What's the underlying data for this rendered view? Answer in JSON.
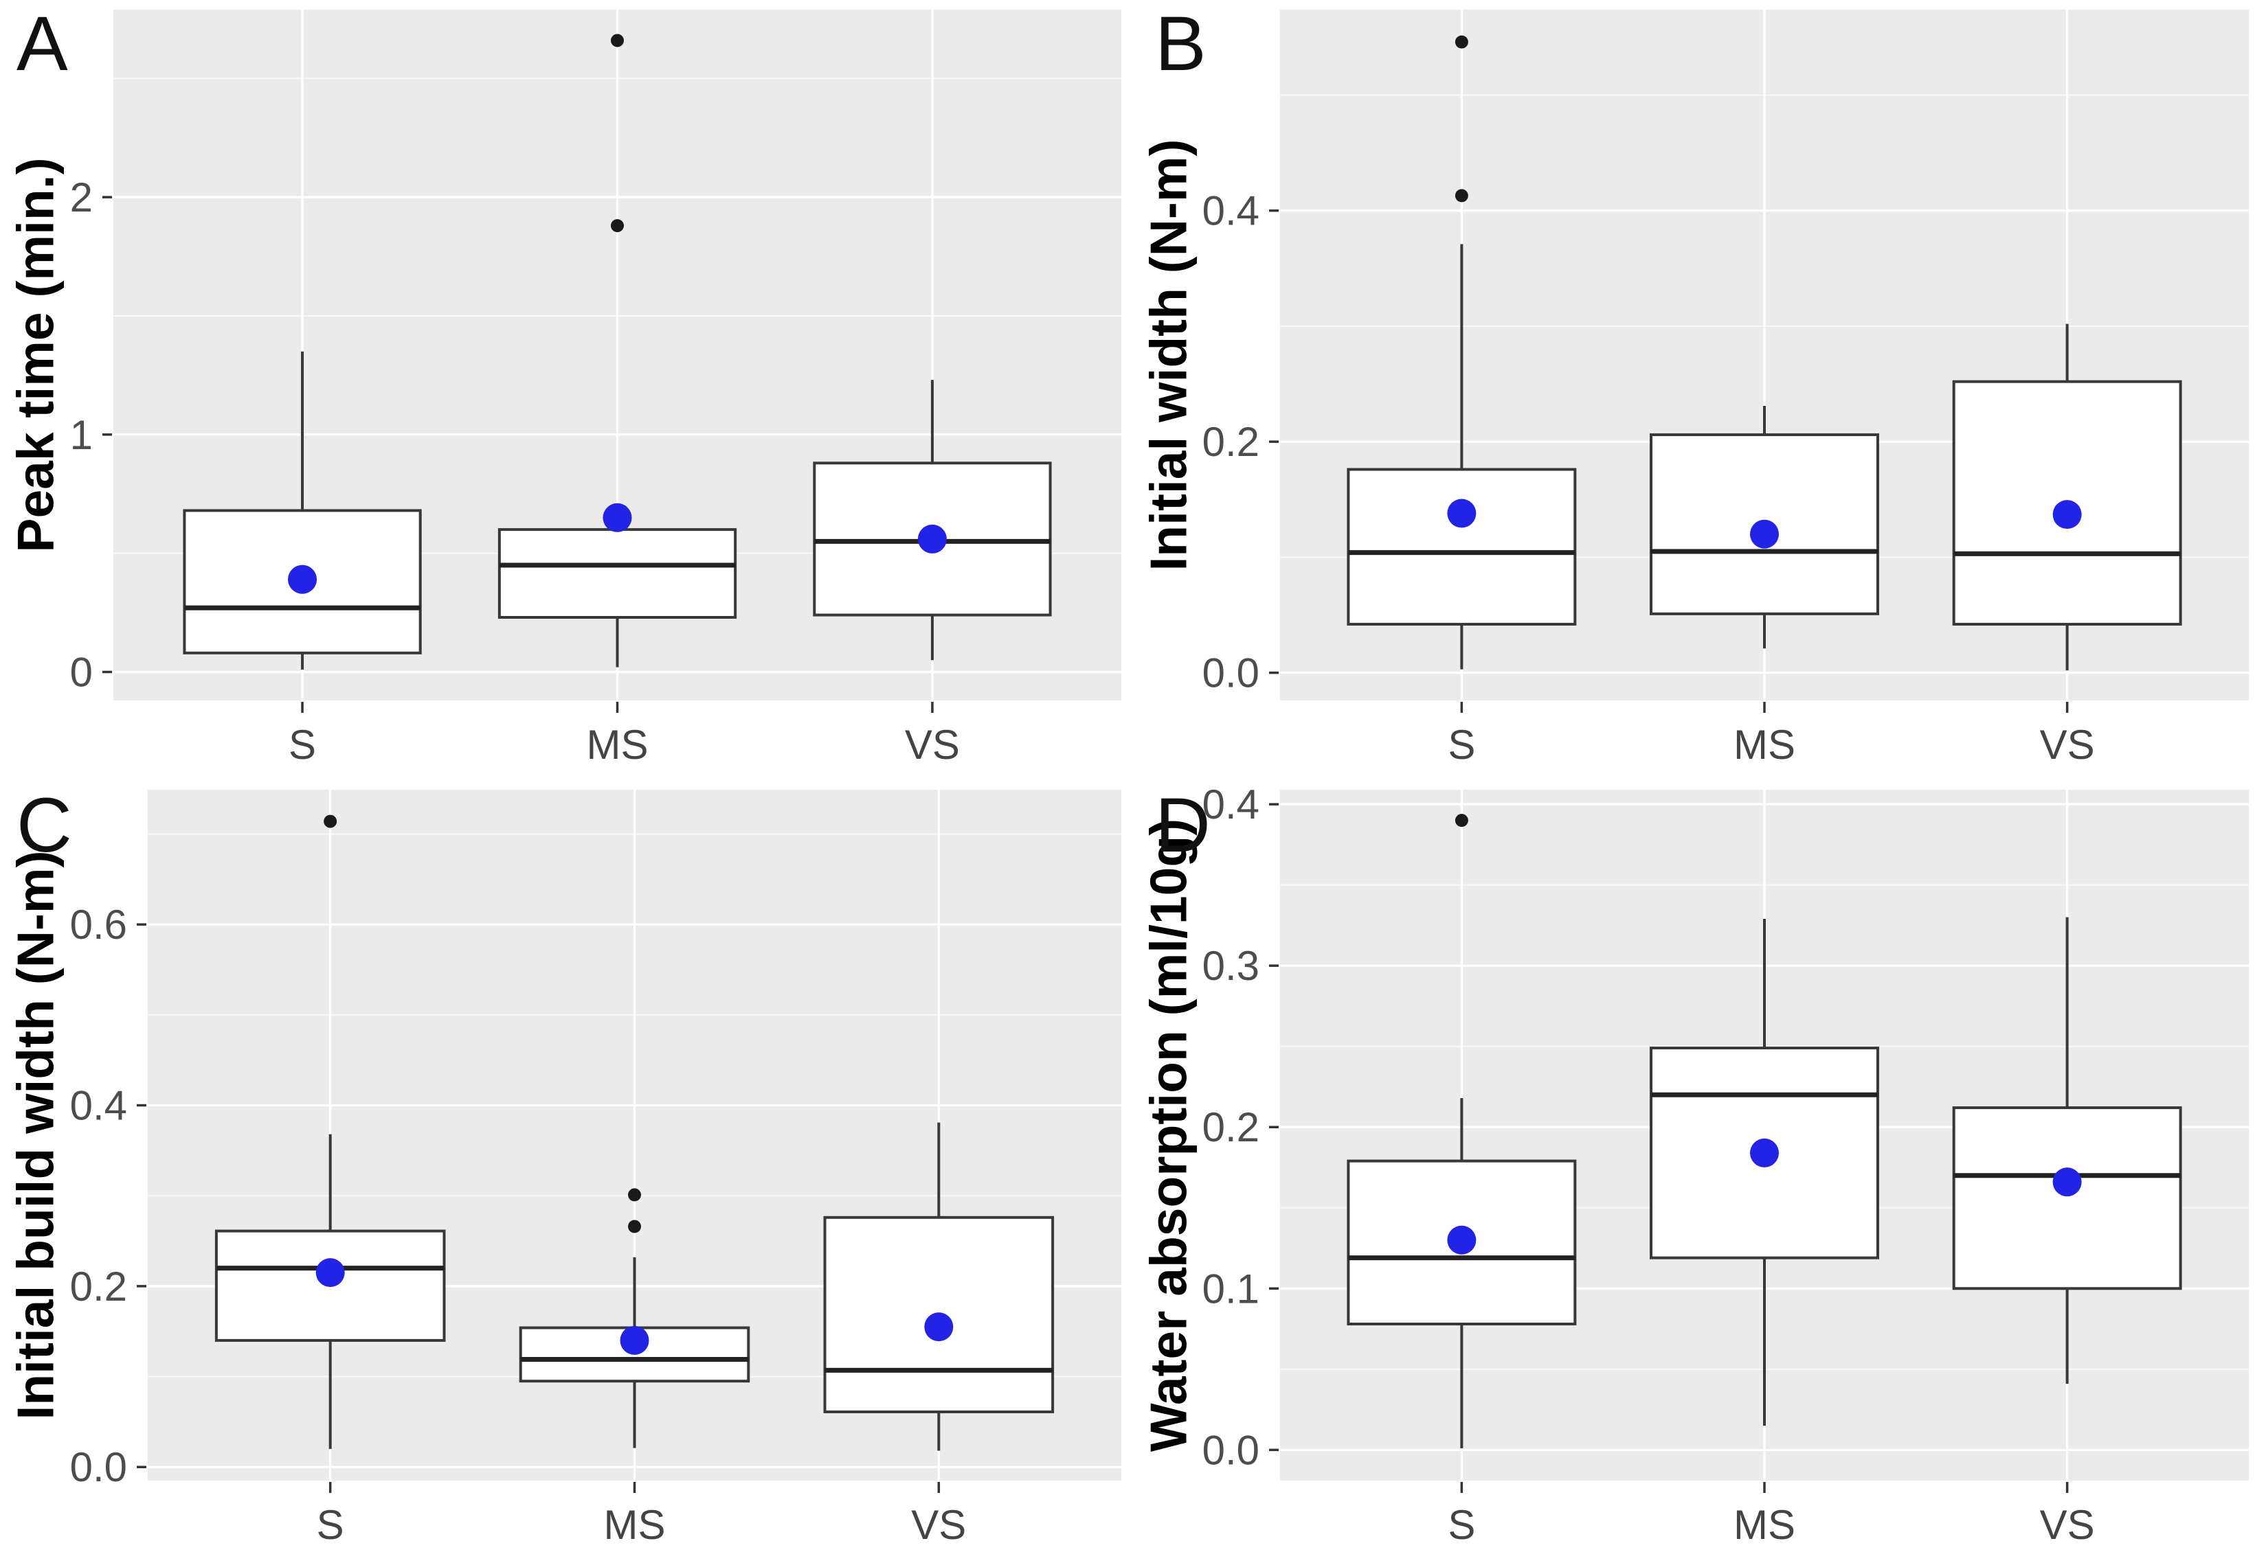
{
  "style": {
    "panel_bg": "#ebebeb",
    "grid_major": "#ffffff",
    "grid_minor": "#f7f7f7",
    "box_stroke": "#383838",
    "median_color": "#222222",
    "whisker_color": "#383838",
    "outlier_color": "#1a1a1a",
    "mean_dot_color": "#2323e6",
    "tick_mark_color": "#333333",
    "tick_label_color": "#4d4d4d",
    "category_label_color": "#444444",
    "axis_title_color": "#000000",
    "panel_tag_color": "#111111"
  },
  "chart_data": [
    {
      "type": "box",
      "tag": "A",
      "ylabel": "Peak time (min.)",
      "categories": [
        "S",
        "MS",
        "VS"
      ],
      "ylim": [
        -0.12,
        2.79
      ],
      "yticks": [
        0,
        1,
        2
      ],
      "ytick_labels": [
        "0",
        "1",
        "2"
      ],
      "yticks_minor": [
        0.5,
        1.5,
        2.5
      ],
      "grid": true,
      "legend": "none",
      "series": [
        {
          "category": "S",
          "whisker_low": 0.01,
          "q1": 0.08,
          "median": 0.27,
          "q3": 0.68,
          "whisker_high": 1.35,
          "mean": 0.39,
          "outliers": []
        },
        {
          "category": "MS",
          "whisker_low": 0.02,
          "q1": 0.23,
          "median": 0.45,
          "q3": 0.6,
          "whisker_high": 0.6,
          "mean": 0.65,
          "outliers": [
            1.88,
            2.66
          ]
        },
        {
          "category": "VS",
          "whisker_low": 0.05,
          "q1": 0.24,
          "median": 0.55,
          "q3": 0.88,
          "whisker_high": 1.23,
          "mean": 0.56,
          "outliers": []
        }
      ]
    },
    {
      "type": "box",
      "tag": "B",
      "ylabel": "Initial width (N-m)",
      "categories": [
        "S",
        "MS",
        "VS"
      ],
      "ylim": [
        -0.024,
        0.574
      ],
      "yticks": [
        0,
        0.2,
        0.4
      ],
      "ytick_labels": [
        "0.0",
        "0.2",
        "0.4"
      ],
      "yticks_minor": [
        0.1,
        0.3,
        0.5
      ],
      "grid": true,
      "legend": "none",
      "series": [
        {
          "category": "S",
          "whisker_low": 0.003,
          "q1": 0.042,
          "median": 0.104,
          "q3": 0.176,
          "whisker_high": 0.371,
          "mean": 0.138,
          "outliers": [
            0.413,
            0.546
          ]
        },
        {
          "category": "MS",
          "whisker_low": 0.021,
          "q1": 0.051,
          "median": 0.105,
          "q3": 0.206,
          "whisker_high": 0.231,
          "mean": 0.12,
          "outliers": []
        },
        {
          "category": "VS",
          "whisker_low": 0.002,
          "q1": 0.042,
          "median": 0.103,
          "q3": 0.252,
          "whisker_high": 0.302,
          "mean": 0.137,
          "outliers": []
        }
      ]
    },
    {
      "type": "box",
      "tag": "C",
      "ylabel": "Initial build width (N-m)",
      "categories": [
        "S",
        "MS",
        "VS"
      ],
      "ylim": [
        -0.015,
        0.749
      ],
      "yticks": [
        0,
        0.2,
        0.4,
        0.6
      ],
      "ytick_labels": [
        "0.0",
        "0.2",
        "0.4",
        "0.6"
      ],
      "yticks_minor": [
        0.1,
        0.3,
        0.5,
        0.7
      ],
      "grid": true,
      "legend": "none",
      "series": [
        {
          "category": "S",
          "whisker_low": 0.02,
          "q1": 0.14,
          "median": 0.22,
          "q3": 0.261,
          "whisker_high": 0.368,
          "mean": 0.215,
          "outliers": [
            0.714
          ]
        },
        {
          "category": "MS",
          "whisker_low": 0.021,
          "q1": 0.095,
          "median": 0.119,
          "q3": 0.154,
          "whisker_high": 0.232,
          "mean": 0.14,
          "outliers": [
            0.266,
            0.301
          ]
        },
        {
          "category": "VS",
          "whisker_low": 0.018,
          "q1": 0.061,
          "median": 0.107,
          "q3": 0.276,
          "whisker_high": 0.381,
          "mean": 0.155,
          "outliers": []
        }
      ]
    },
    {
      "type": "box",
      "tag": "D",
      "ylabel": "Water absorption (ml/10g)",
      "categories": [
        "S",
        "MS",
        "VS"
      ],
      "ylim": [
        -0.019,
        0.409
      ],
      "yticks": [
        0,
        0.1,
        0.2,
        0.3,
        0.4
      ],
      "ytick_labels": [
        "0.0",
        "0.1",
        "0.2",
        "0.3",
        "0.4"
      ],
      "yticks_minor": [
        0.05,
        0.15,
        0.25,
        0.35
      ],
      "grid": true,
      "legend": "none",
      "series": [
        {
          "category": "S",
          "whisker_low": 0.001,
          "q1": 0.078,
          "median": 0.119,
          "q3": 0.179,
          "whisker_high": 0.218,
          "mean": 0.13,
          "outliers": [
            0.39
          ]
        },
        {
          "category": "MS",
          "whisker_low": 0.015,
          "q1": 0.119,
          "median": 0.22,
          "q3": 0.249,
          "whisker_high": 0.329,
          "mean": 0.184,
          "outliers": []
        },
        {
          "category": "VS",
          "whisker_low": 0.041,
          "q1": 0.1,
          "median": 0.17,
          "q3": 0.212,
          "whisker_high": 0.33,
          "mean": 0.166,
          "outliers": []
        }
      ]
    }
  ]
}
